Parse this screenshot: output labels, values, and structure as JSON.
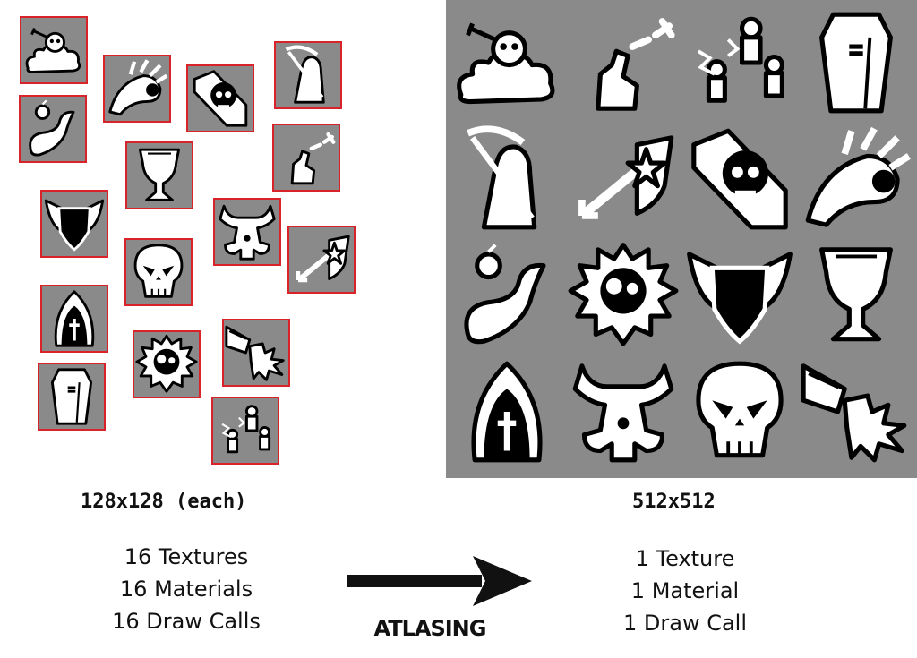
{
  "left_group": {
    "size_label": "128x128 (each)",
    "stats": [
      "16 Textures",
      "16 Materials",
      "16 Draw Calls"
    ],
    "tiles": [
      {
        "icon": "skull-cloud-icon"
      },
      {
        "icon": "sun-swirl-icon"
      },
      {
        "icon": "skull-scroll-icon"
      },
      {
        "icon": "reaper-icon"
      },
      {
        "icon": "apple-vine-icon"
      },
      {
        "icon": "trophy-icon"
      },
      {
        "icon": "kick-icon"
      },
      {
        "icon": "winged-shield-icon"
      },
      {
        "icon": "horned-warrior-icon"
      },
      {
        "icon": "arrow-shield-icon"
      },
      {
        "icon": "skull-icon"
      },
      {
        "icon": "hooded-monk-icon"
      },
      {
        "icon": "spiky-skull-icon"
      },
      {
        "icon": "cannon-blast-icon"
      },
      {
        "icon": "coffin-icon"
      },
      {
        "icon": "lightning-figures-icon"
      }
    ]
  },
  "right_group": {
    "size_label": "512x512",
    "stats": [
      "1 Texture",
      "1 Material",
      "1 Draw Call"
    ],
    "atlas": [
      "skull-cloud-icon",
      "kick-icon",
      "lightning-figures-icon",
      "coffin-icon",
      "reaper-icon",
      "arrow-shield-icon",
      "skull-scroll-icon",
      "sun-swirl-icon",
      "apple-vine-icon",
      "spiky-skull-icon",
      "winged-shield-icon",
      "trophy-icon",
      "hooded-monk-icon",
      "horned-warrior-icon",
      "skull-icon",
      "cannon-blast-icon"
    ]
  },
  "arrow": {
    "label": "ATLASING"
  },
  "colors": {
    "tile_bg": "#8a8a8a",
    "tile_border": "#d8232a",
    "ink": "#111111"
  }
}
